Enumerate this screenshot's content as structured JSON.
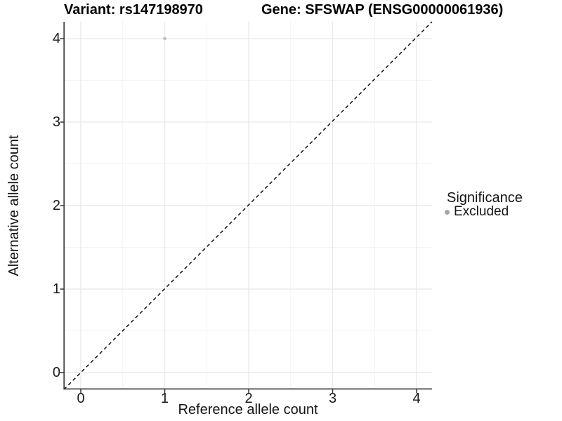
{
  "titles": {
    "left": "Variant: rs147198970",
    "right": "Gene: SFSWAP (ENSG00000061936)"
  },
  "chart_data": {
    "type": "scatter",
    "title": "Variant: rs147198970 — Gene: SFSWAP (ENSG00000061936)",
    "xlabel": "Reference allele count",
    "ylabel": "Alternative allele count",
    "xlim": [
      -0.2,
      4.2
    ],
    "ylim": [
      -0.2,
      4.2
    ],
    "x_tick_labels": [
      "0",
      "1",
      "2",
      "3",
      "4"
    ],
    "y_tick_labels": [
      "0",
      "1",
      "2",
      "3",
      "4"
    ],
    "grid": "major and minor gridlines, light grey on white panel",
    "gridline_major_color": "#e7e7e7",
    "gridline_minor_color": "#f3f3f3",
    "reference_line": {
      "type": "identity y=x",
      "style": "dashed",
      "color": "#000000"
    },
    "series": [
      {
        "name": "Excluded",
        "color": "#c2c2c2",
        "points": [
          {
            "x": 1,
            "y": 4
          }
        ]
      }
    ],
    "legend": {
      "title": "Significance",
      "position": "right",
      "items": [
        {
          "label": "Excluded",
          "color": "#a6a6a6"
        }
      ]
    }
  }
}
